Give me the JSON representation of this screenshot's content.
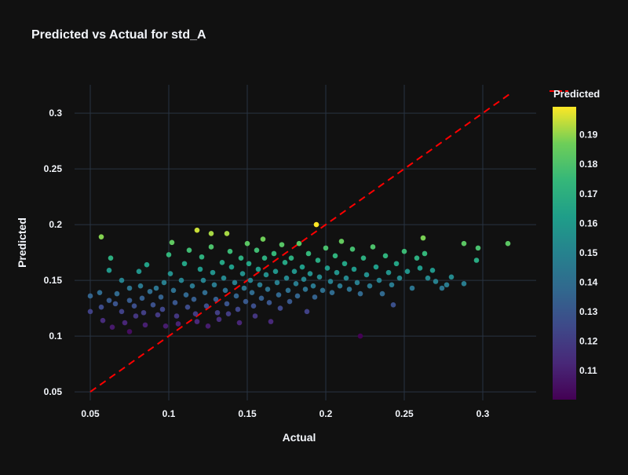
{
  "chart_data": {
    "type": "scatter",
    "title": "Predicted vs Actual for std_A",
    "xlabel": "Actual",
    "ylabel": "Predicted",
    "xlim": [
      0.04,
      0.334
    ],
    "ylim": [
      0.0423,
      0.3254
    ],
    "xticks": [
      "0.05",
      "0.1",
      "0.15",
      "0.2",
      "0.25",
      "0.3"
    ],
    "yticks": [
      "0.05",
      "0.1",
      "0.15",
      "0.2",
      "0.25",
      "0.3"
    ],
    "grid": true,
    "legend": {
      "entry": "Predicted",
      "placement": "top-right"
    },
    "reference_line": {
      "from": [
        0.05,
        0.05
      ],
      "to": [
        0.317,
        0.317
      ],
      "color": "#ff0000",
      "style": "dashed"
    },
    "colorbar": {
      "title": "Predicted",
      "colorscale": "Viridis",
      "range": [
        0.1002,
        0.1995
      ],
      "ticks": [
        "0.11",
        "0.12",
        "0.13",
        "0.14",
        "0.15",
        "0.16",
        "0.17",
        "0.18",
        "0.19"
      ]
    },
    "points": [
      [
        0.057,
        0.189
      ],
      [
        0.118,
        0.195
      ],
      [
        0.127,
        0.192
      ],
      [
        0.137,
        0.192
      ],
      [
        0.194,
        0.2
      ],
      [
        0.316,
        0.183
      ],
      [
        0.297,
        0.179
      ],
      [
        0.288,
        0.183
      ],
      [
        0.288,
        0.147
      ],
      [
        0.296,
        0.168
      ],
      [
        0.222,
        0.1
      ],
      [
        0.075,
        0.104
      ],
      [
        0.05,
        0.136
      ],
      [
        0.05,
        0.122
      ],
      [
        0.063,
        0.17
      ],
      [
        0.262,
        0.188
      ],
      [
        0.243,
        0.128
      ],
      [
        0.265,
        0.152
      ],
      [
        0.188,
        0.122
      ],
      [
        0.274,
        0.143
      ],
      [
        0.056,
        0.139
      ],
      [
        0.057,
        0.126
      ],
      [
        0.058,
        0.114
      ],
      [
        0.062,
        0.159
      ],
      [
        0.062,
        0.132
      ],
      [
        0.064,
        0.108
      ],
      [
        0.066,
        0.129
      ],
      [
        0.067,
        0.138
      ],
      [
        0.07,
        0.15
      ],
      [
        0.07,
        0.122
      ],
      [
        0.072,
        0.112
      ],
      [
        0.075,
        0.143
      ],
      [
        0.075,
        0.132
      ],
      [
        0.078,
        0.127
      ],
      [
        0.079,
        0.118
      ],
      [
        0.081,
        0.158
      ],
      [
        0.082,
        0.145
      ],
      [
        0.083,
        0.134
      ],
      [
        0.084,
        0.121
      ],
      [
        0.085,
        0.11
      ],
      [
        0.086,
        0.164
      ],
      [
        0.088,
        0.14
      ],
      [
        0.09,
        0.128
      ],
      [
        0.092,
        0.143
      ],
      [
        0.093,
        0.119
      ],
      [
        0.095,
        0.135
      ],
      [
        0.096,
        0.124
      ],
      [
        0.097,
        0.148
      ],
      [
        0.098,
        0.109
      ],
      [
        0.1,
        0.173
      ],
      [
        0.101,
        0.156
      ],
      [
        0.102,
        0.184
      ],
      [
        0.103,
        0.141
      ],
      [
        0.104,
        0.13
      ],
      [
        0.105,
        0.118
      ],
      [
        0.106,
        0.111
      ],
      [
        0.108,
        0.15
      ],
      [
        0.11,
        0.165
      ],
      [
        0.111,
        0.137
      ],
      [
        0.112,
        0.126
      ],
      [
        0.113,
        0.177
      ],
      [
        0.115,
        0.145
      ],
      [
        0.116,
        0.133
      ],
      [
        0.117,
        0.12
      ],
      [
        0.118,
        0.113
      ],
      [
        0.12,
        0.16
      ],
      [
        0.121,
        0.171
      ],
      [
        0.122,
        0.15
      ],
      [
        0.123,
        0.139
      ],
      [
        0.124,
        0.127
      ],
      [
        0.125,
        0.109
      ],
      [
        0.127,
        0.18
      ],
      [
        0.128,
        0.157
      ],
      [
        0.129,
        0.146
      ],
      [
        0.13,
        0.133
      ],
      [
        0.131,
        0.121
      ],
      [
        0.132,
        0.115
      ],
      [
        0.134,
        0.166
      ],
      [
        0.135,
        0.152
      ],
      [
        0.136,
        0.141
      ],
      [
        0.137,
        0.129
      ],
      [
        0.138,
        0.12
      ],
      [
        0.139,
        0.176
      ],
      [
        0.14,
        0.162
      ],
      [
        0.142,
        0.148
      ],
      [
        0.143,
        0.136
      ],
      [
        0.144,
        0.124
      ],
      [
        0.145,
        0.112
      ],
      [
        0.146,
        0.17
      ],
      [
        0.147,
        0.156
      ],
      [
        0.148,
        0.143
      ],
      [
        0.149,
        0.131
      ],
      [
        0.15,
        0.183
      ],
      [
        0.151,
        0.165
      ],
      [
        0.152,
        0.15
      ],
      [
        0.153,
        0.139
      ],
      [
        0.154,
        0.127
      ],
      [
        0.155,
        0.118
      ],
      [
        0.156,
        0.177
      ],
      [
        0.157,
        0.16
      ],
      [
        0.158,
        0.146
      ],
      [
        0.159,
        0.134
      ],
      [
        0.16,
        0.187
      ],
      [
        0.161,
        0.17
      ],
      [
        0.162,
        0.155
      ],
      [
        0.163,
        0.142
      ],
      [
        0.164,
        0.13
      ],
      [
        0.165,
        0.113
      ],
      [
        0.167,
        0.174
      ],
      [
        0.168,
        0.158
      ],
      [
        0.169,
        0.148
      ],
      [
        0.17,
        0.137
      ],
      [
        0.171,
        0.125
      ],
      [
        0.172,
        0.182
      ],
      [
        0.174,
        0.166
      ],
      [
        0.175,
        0.152
      ],
      [
        0.176,
        0.141
      ],
      [
        0.177,
        0.131
      ],
      [
        0.178,
        0.17
      ],
      [
        0.18,
        0.158
      ],
      [
        0.181,
        0.147
      ],
      [
        0.182,
        0.136
      ],
      [
        0.183,
        0.183
      ],
      [
        0.185,
        0.162
      ],
      [
        0.186,
        0.151
      ],
      [
        0.187,
        0.142
      ],
      [
        0.189,
        0.174
      ],
      [
        0.19,
        0.156
      ],
      [
        0.192,
        0.145
      ],
      [
        0.193,
        0.135
      ],
      [
        0.195,
        0.168
      ],
      [
        0.196,
        0.153
      ],
      [
        0.198,
        0.141
      ],
      [
        0.2,
        0.179
      ],
      [
        0.201,
        0.161
      ],
      [
        0.203,
        0.149
      ],
      [
        0.204,
        0.139
      ],
      [
        0.206,
        0.172
      ],
      [
        0.207,
        0.157
      ],
      [
        0.209,
        0.145
      ],
      [
        0.21,
        0.185
      ],
      [
        0.212,
        0.165
      ],
      [
        0.213,
        0.152
      ],
      [
        0.215,
        0.142
      ],
      [
        0.217,
        0.178
      ],
      [
        0.218,
        0.16
      ],
      [
        0.22,
        0.148
      ],
      [
        0.222,
        0.138
      ],
      [
        0.224,
        0.17
      ],
      [
        0.226,
        0.155
      ],
      [
        0.228,
        0.145
      ],
      [
        0.23,
        0.18
      ],
      [
        0.232,
        0.162
      ],
      [
        0.234,
        0.15
      ],
      [
        0.236,
        0.138
      ],
      [
        0.238,
        0.172
      ],
      [
        0.24,
        0.157
      ],
      [
        0.242,
        0.146
      ],
      [
        0.245,
        0.165
      ],
      [
        0.247,
        0.152
      ],
      [
        0.25,
        0.176
      ],
      [
        0.252,
        0.158
      ],
      [
        0.255,
        0.143
      ],
      [
        0.258,
        0.17
      ],
      [
        0.26,
        0.161
      ],
      [
        0.263,
        0.174
      ],
      [
        0.268,
        0.159
      ],
      [
        0.27,
        0.149
      ],
      [
        0.277,
        0.146
      ],
      [
        0.28,
        0.153
      ]
    ]
  }
}
